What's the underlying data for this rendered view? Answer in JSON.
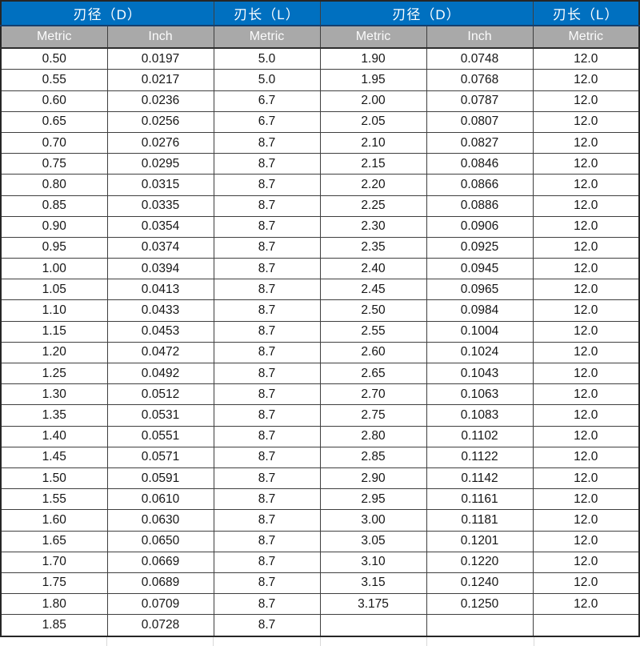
{
  "chart_data": {
    "type": "table",
    "title": "",
    "header_groups": [
      {
        "label": "刃径（D）",
        "colspan": 2
      },
      {
        "label": "刃长（L）",
        "colspan": 1
      },
      {
        "label": "刃径（D）",
        "colspan": 2
      },
      {
        "label": "刃长（L）",
        "colspan": 1
      }
    ],
    "subheaders": [
      "Metric",
      "Inch",
      "Metric",
      "Metric",
      "Inch",
      "Metric"
    ],
    "rows": [
      [
        "0.50",
        "0.0197",
        "5.0",
        "1.90",
        "0.0748",
        "12.0"
      ],
      [
        "0.55",
        "0.0217",
        "5.0",
        "1.95",
        "0.0768",
        "12.0"
      ],
      [
        "0.60",
        "0.0236",
        "6.7",
        "2.00",
        "0.0787",
        "12.0"
      ],
      [
        "0.65",
        "0.0256",
        "6.7",
        "2.05",
        "0.0807",
        "12.0"
      ],
      [
        "0.70",
        "0.0276",
        "8.7",
        "2.10",
        "0.0827",
        "12.0"
      ],
      [
        "0.75",
        "0.0295",
        "8.7",
        "2.15",
        "0.0846",
        "12.0"
      ],
      [
        "0.80",
        "0.0315",
        "8.7",
        "2.20",
        "0.0866",
        "12.0"
      ],
      [
        "0.85",
        "0.0335",
        "8.7",
        "2.25",
        "0.0886",
        "12.0"
      ],
      [
        "0.90",
        "0.0354",
        "8.7",
        "2.30",
        "0.0906",
        "12.0"
      ],
      [
        "0.95",
        "0.0374",
        "8.7",
        "2.35",
        "0.0925",
        "12.0"
      ],
      [
        "1.00",
        "0.0394",
        "8.7",
        "2.40",
        "0.0945",
        "12.0"
      ],
      [
        "1.05",
        "0.0413",
        "8.7",
        "2.45",
        "0.0965",
        "12.0"
      ],
      [
        "1.10",
        "0.0433",
        "8.7",
        "2.50",
        "0.0984",
        "12.0"
      ],
      [
        "1.15",
        "0.0453",
        "8.7",
        "2.55",
        "0.1004",
        "12.0"
      ],
      [
        "1.20",
        "0.0472",
        "8.7",
        "2.60",
        "0.1024",
        "12.0"
      ],
      [
        "1.25",
        "0.0492",
        "8.7",
        "2.65",
        "0.1043",
        "12.0"
      ],
      [
        "1.30",
        "0.0512",
        "8.7",
        "2.70",
        "0.1063",
        "12.0"
      ],
      [
        "1.35",
        "0.0531",
        "8.7",
        "2.75",
        "0.1083",
        "12.0"
      ],
      [
        "1.40",
        "0.0551",
        "8.7",
        "2.80",
        "0.1102",
        "12.0"
      ],
      [
        "1.45",
        "0.0571",
        "8.7",
        "2.85",
        "0.1122",
        "12.0"
      ],
      [
        "1.50",
        "0.0591",
        "8.7",
        "2.90",
        "0.1142",
        "12.0"
      ],
      [
        "1.55",
        "0.0610",
        "8.7",
        "2.95",
        "0.1161",
        "12.0"
      ],
      [
        "1.60",
        "0.0630",
        "8.7",
        "3.00",
        "0.1181",
        "12.0"
      ],
      [
        "1.65",
        "0.0650",
        "8.7",
        "3.05",
        "0.1201",
        "12.0"
      ],
      [
        "1.70",
        "0.0669",
        "8.7",
        "3.10",
        "0.1220",
        "12.0"
      ],
      [
        "1.75",
        "0.0689",
        "8.7",
        "3.15",
        "0.1240",
        "12.0"
      ],
      [
        "1.80",
        "0.0709",
        "8.7",
        "3.175",
        "0.1250",
        "12.0"
      ],
      [
        "1.85",
        "0.0728",
        "8.7",
        "",
        "",
        ""
      ]
    ],
    "layout": {
      "columns": 6,
      "column_width_pct": 16.6667,
      "grid": true,
      "legend": "none"
    }
  },
  "colors": {
    "header_blue": "#0070C0",
    "header_blue_divider": "#143F6E",
    "header_gray": "#A9A9A9",
    "header_text": "#FFFFFF",
    "cell_text": "#161616",
    "grid_border": "#3F3F3F",
    "outer_border": "#262626",
    "cutoff_line": "#D9D9D9"
  }
}
